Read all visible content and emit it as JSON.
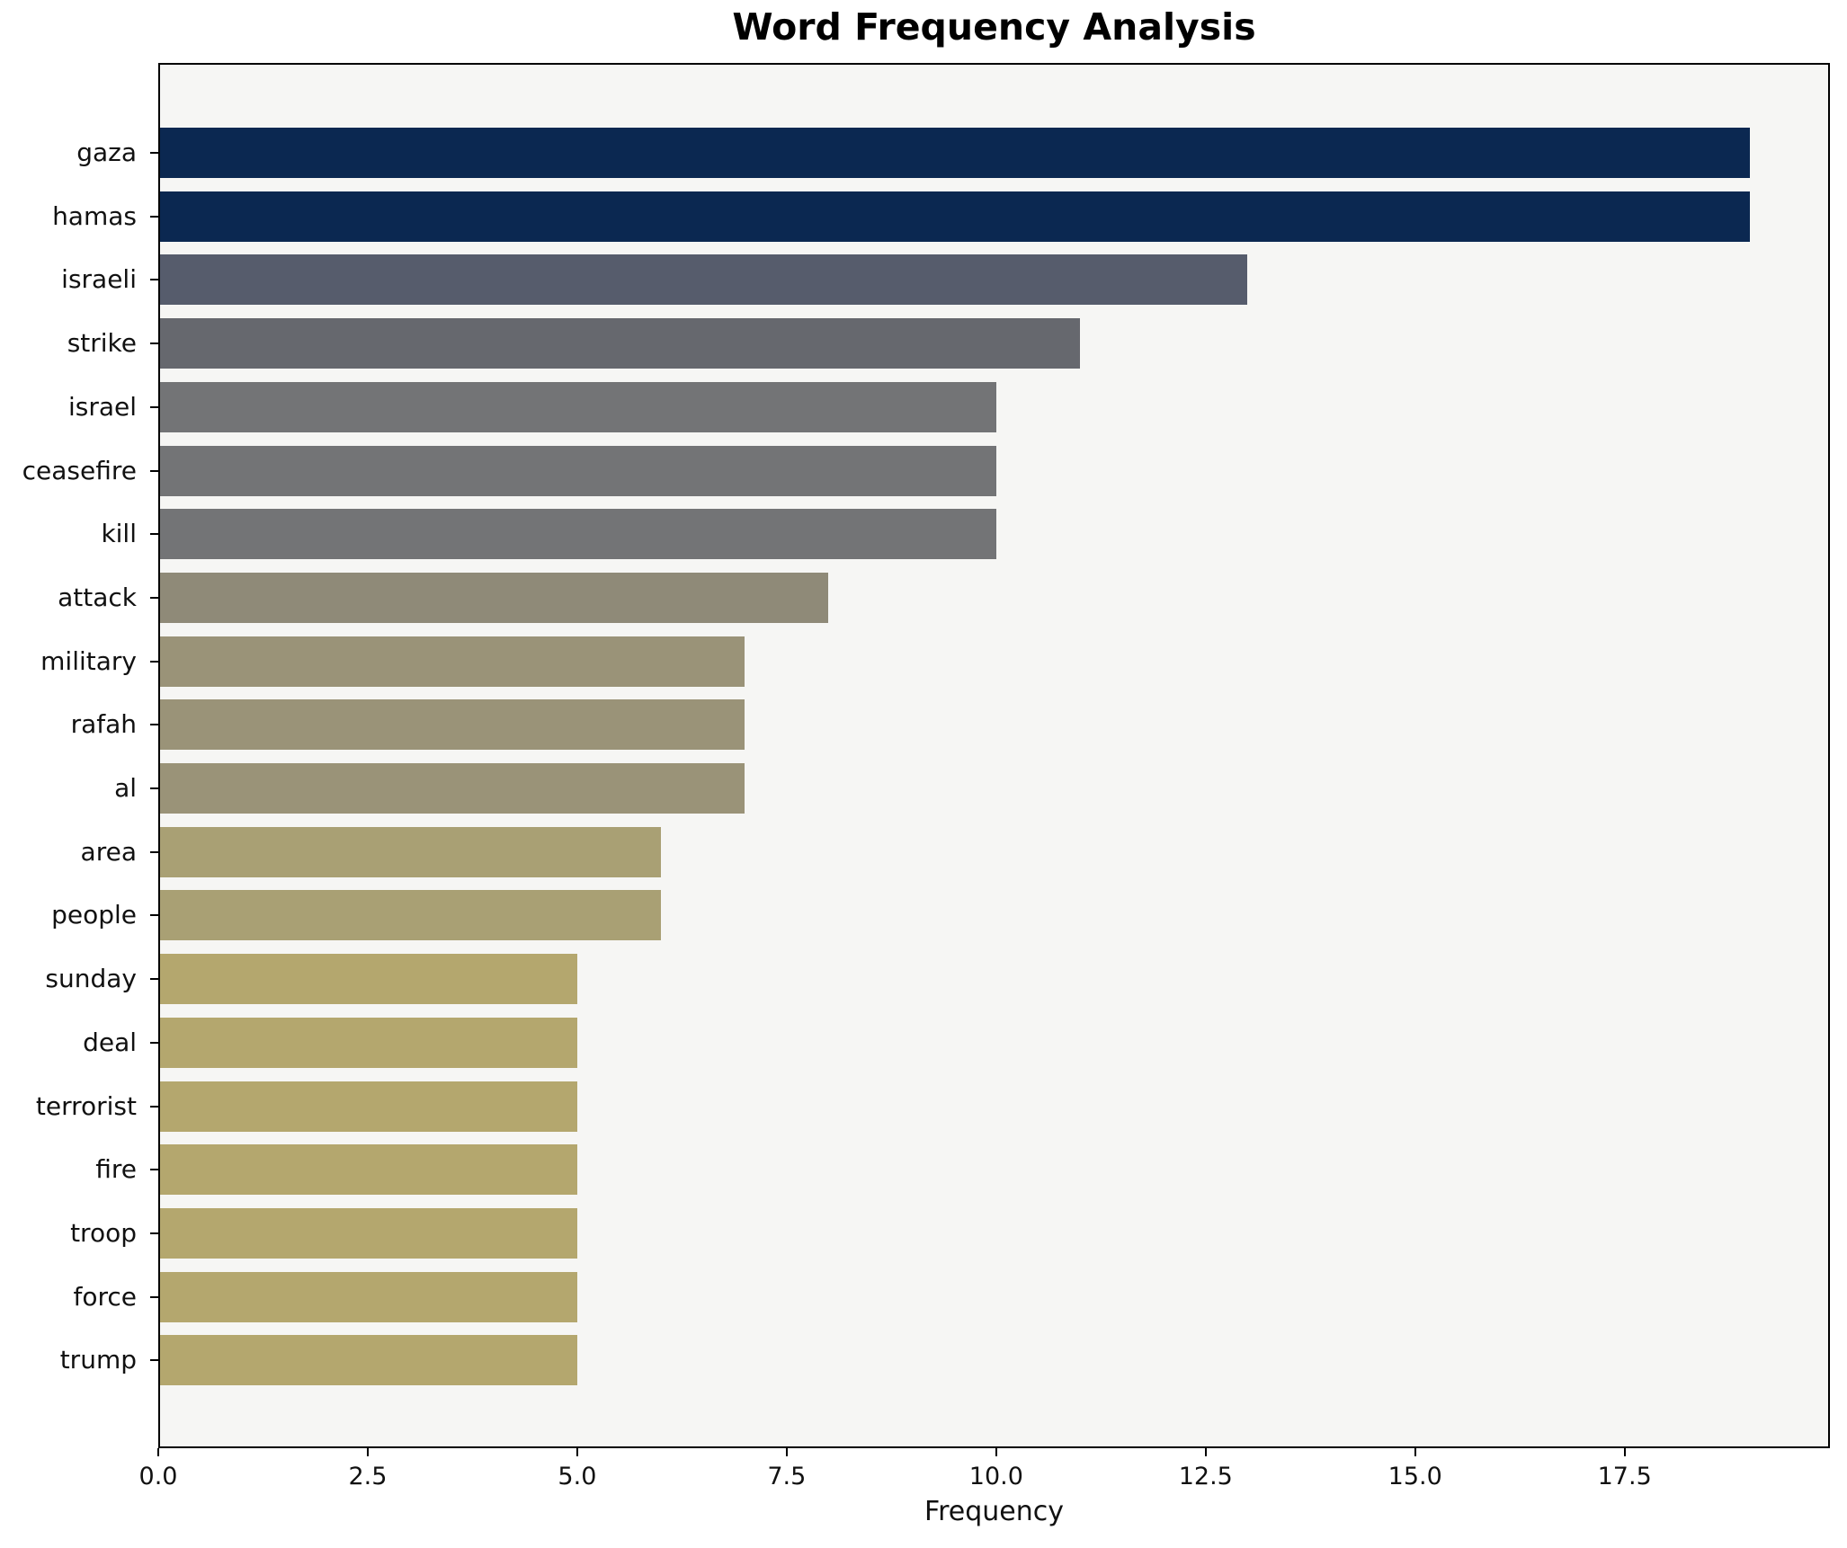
{
  "chart_data": {
    "type": "bar",
    "orientation": "horizontal",
    "title": "Word Frequency Analysis",
    "xlabel": "Frequency",
    "categories": [
      "gaza",
      "hamas",
      "israeli",
      "strike",
      "israel",
      "ceasefire",
      "kill",
      "attack",
      "military",
      "rafah",
      "al",
      "area",
      "people",
      "sunday",
      "deal",
      "terrorist",
      "fire",
      "troop",
      "force",
      "trump"
    ],
    "values": [
      19,
      19,
      13,
      11,
      10,
      10,
      10,
      8,
      7,
      7,
      7,
      6,
      6,
      5,
      5,
      5,
      5,
      5,
      5,
      5
    ],
    "bar_colors": [
      "#0b2851",
      "#0b2851",
      "#565c6c",
      "#66686e",
      "#737476",
      "#737476",
      "#737476",
      "#8f8a78",
      "#9a9378",
      "#9a9378",
      "#9a9378",
      "#a9a074",
      "#a9a074",
      "#b4a76e",
      "#b4a76e",
      "#b4a76e",
      "#b4a76e",
      "#b4a76e",
      "#b4a76e",
      "#b4a76e"
    ],
    "xlim": [
      0,
      19.95
    ],
    "xticks": [
      0,
      2.5,
      5,
      7.5,
      10,
      12.5,
      15,
      17.5
    ],
    "xtick_labels": [
      "0.0",
      "2.5",
      "5.0",
      "7.5",
      "10.0",
      "12.5",
      "15.0",
      "17.5"
    ],
    "grid": false,
    "legend": null,
    "plot_background": "#f6f6f4",
    "figure_background": "#ffffff",
    "spine_color": "#000000"
  }
}
